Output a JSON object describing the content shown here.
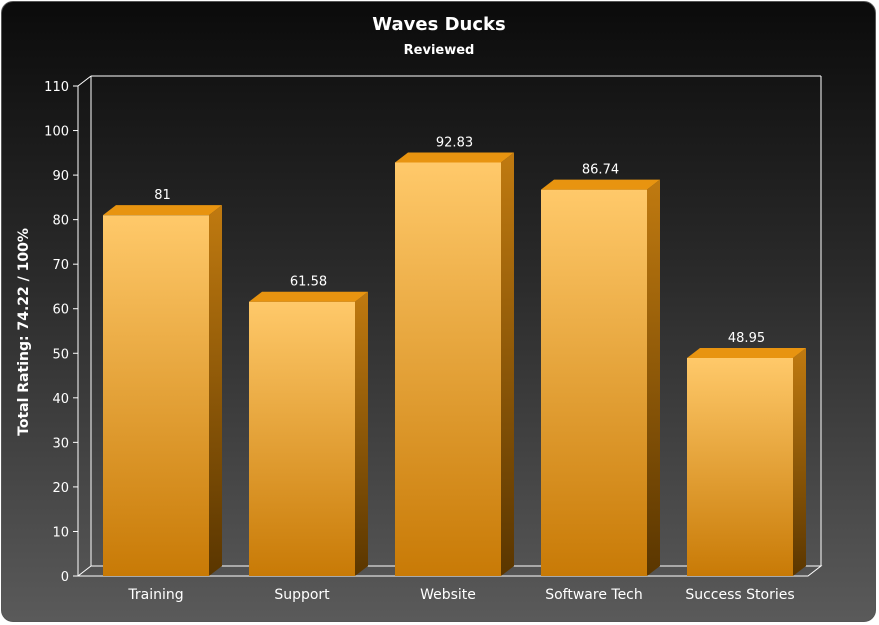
{
  "chart_data": {
    "type": "bar",
    "title": "Waves Ducks",
    "subtitle": "Reviewed",
    "xlabel": "",
    "ylabel": "Total Rating: 74.22 / 100%",
    "categories": [
      "Training",
      "Support",
      "Website",
      "Software Tech",
      "Success Stories"
    ],
    "values": [
      81,
      61.58,
      92.83,
      86.74,
      48.95
    ],
    "value_labels": [
      "81",
      "61.58",
      "92.83",
      "86.74",
      "48.95"
    ],
    "ylim": [
      0,
      110
    ],
    "yticks": [
      0,
      10,
      20,
      30,
      40,
      50,
      60,
      70,
      80,
      90,
      100,
      110
    ],
    "grid": false,
    "legend": "none",
    "bar_color": "#f0a028",
    "background": "#2a2a2a"
  }
}
